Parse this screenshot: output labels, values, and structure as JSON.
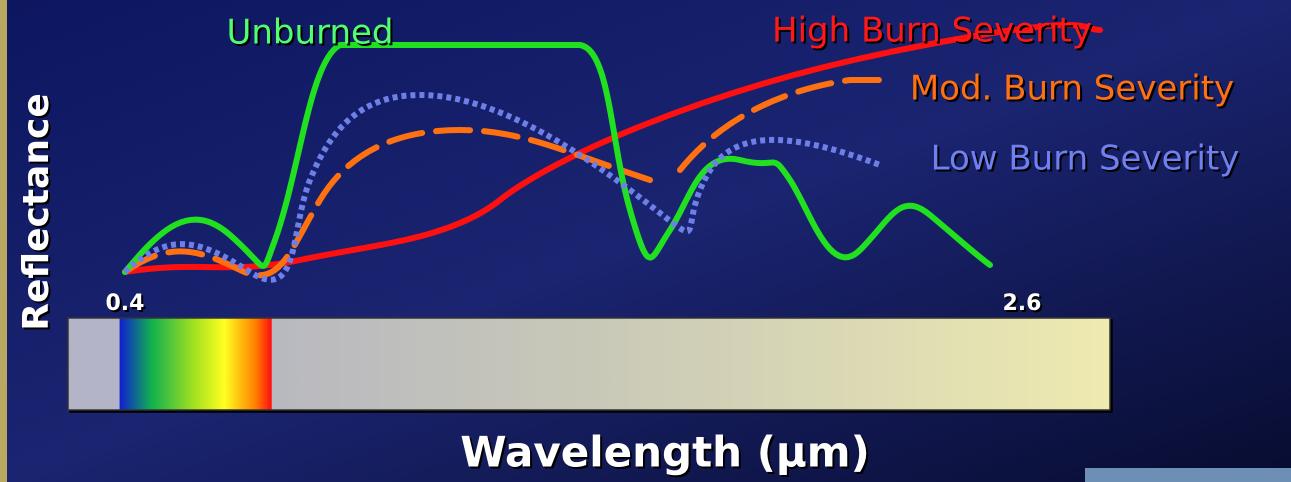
{
  "labels": {
    "unburned": "Unburned",
    "high": "High Burn Severity",
    "moderate": "Mod. Burn Severity",
    "low": "Low Burn Severity"
  },
  "axes": {
    "y_title": "Reflectance",
    "x_title": "Wavelength (µm)",
    "x_start": "0.4",
    "x_end": "2.6"
  }
}
